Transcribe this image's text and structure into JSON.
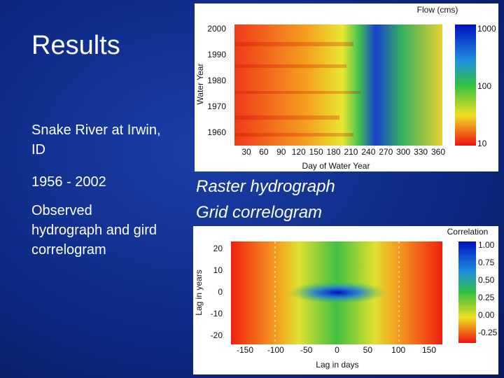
{
  "slide": {
    "title": "Results",
    "notes": [
      "Snake River at Irwin, ID",
      "1956 - 2002",
      "Observed hydrograph and gird correlogram"
    ]
  },
  "captions": [
    "Raster hydrograph",
    "Grid correlogram"
  ],
  "figures": [
    {
      "colorbar_title": "Flow (cms)",
      "colorbar_ticks": [
        "1000",
        "100",
        "10"
      ],
      "y_label": "Water Year",
      "y_ticks": [
        "2000",
        "1990",
        "1980",
        "1970",
        "1960"
      ],
      "x_label": "Day of Water Year",
      "x_ticks": [
        "30",
        "60",
        "90",
        "120",
        "150",
        "180",
        "210",
        "240",
        "270",
        "300",
        "330",
        "360"
      ]
    },
    {
      "colorbar_title": "Correlation",
      "colorbar_ticks": [
        "1.00",
        "0.75",
        "0.50",
        "0.25",
        "0.00",
        "-0.25"
      ],
      "y_label": "Lag in years",
      "y_ticks": [
        "20",
        "10",
        "0",
        "-10",
        "-20"
      ],
      "x_label": "Lag in days",
      "x_ticks": [
        "-150",
        "-100",
        "-50",
        "0",
        "50",
        "100",
        "150"
      ]
    }
  ]
}
